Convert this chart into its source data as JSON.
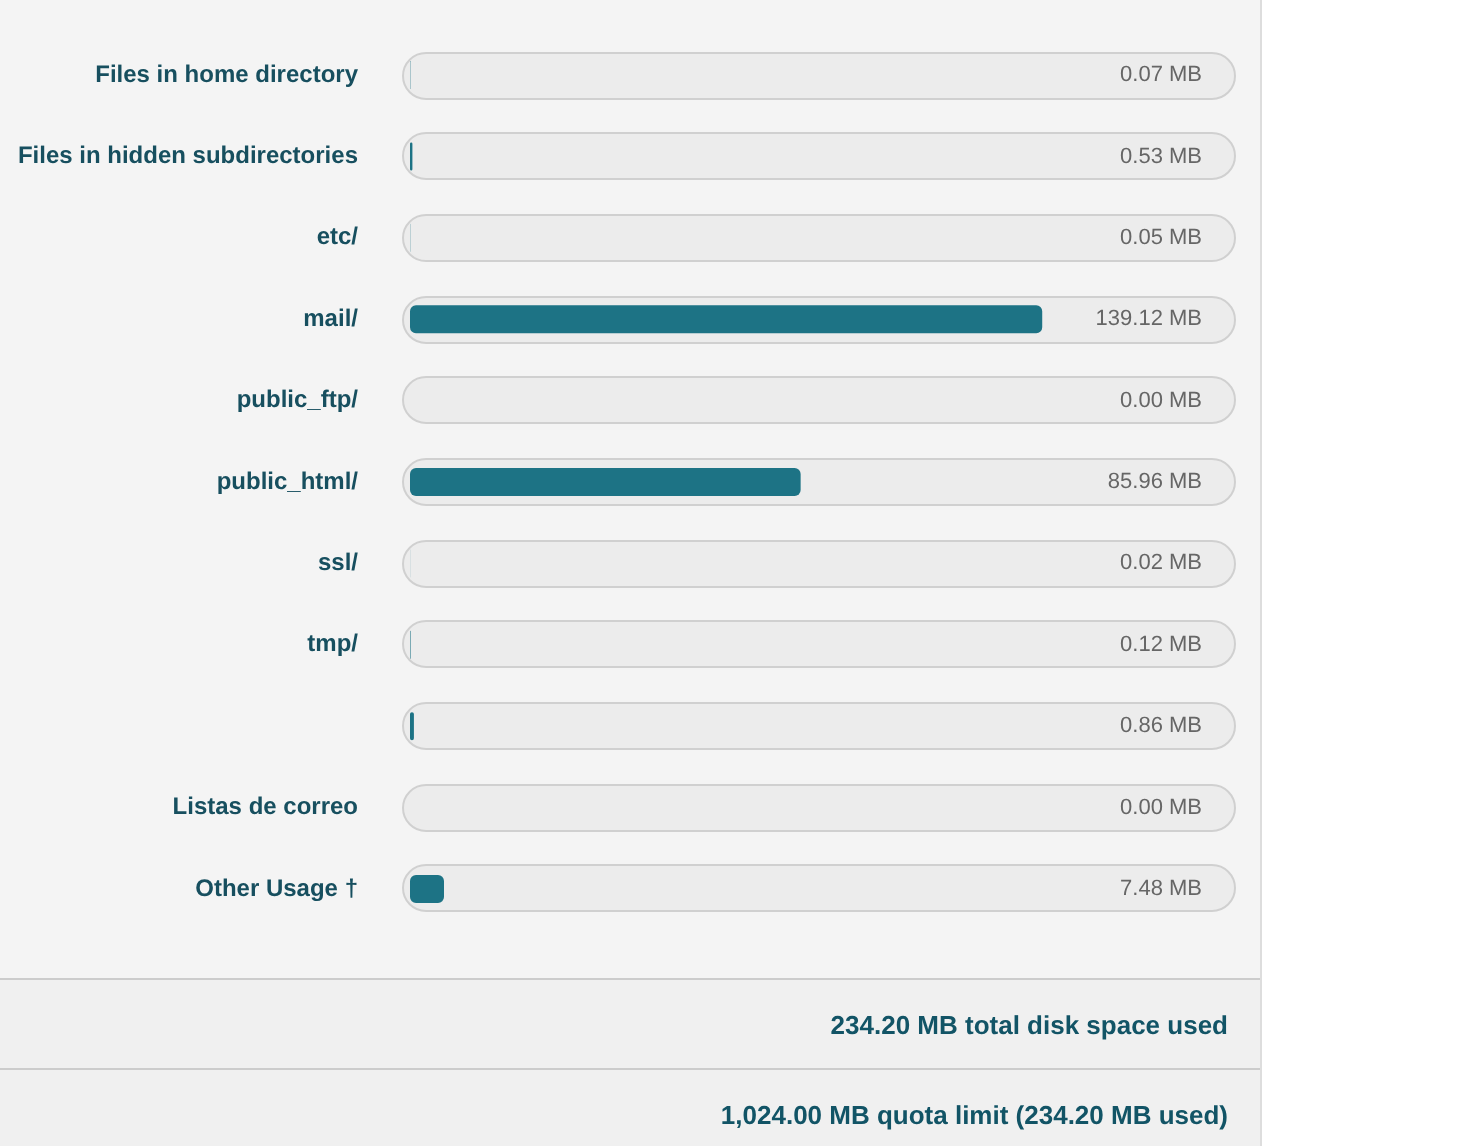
{
  "chart_data": {
    "type": "bar",
    "orientation": "horizontal",
    "categories": [
      "Files in home directory",
      "Files in hidden subdirectories",
      "etc/",
      "mail/",
      "public_ftp/",
      "public_html/",
      "ssl/",
      "tmp/",
      null,
      "Listas de correo",
      "Other Usage †"
    ],
    "values": [
      0.07,
      0.53,
      0.05,
      139.12,
      0.0,
      85.96,
      0.02,
      0.12,
      0.86,
      0.0,
      7.48
    ],
    "value_labels": [
      "0.07 MB",
      "0.53 MB",
      "0.05 MB",
      "139.12 MB",
      "0.00 MB",
      "85.96 MB",
      "0.02 MB",
      "0.12 MB",
      "0.86 MB",
      "0.00 MB",
      "7.48 MB"
    ],
    "color": "#1d7385",
    "grid": false,
    "legend": false,
    "annotations": [
      "234.20 MB total disk space used",
      "1,024.00 MB quota limit (234.20 MB used)"
    ]
  }
}
